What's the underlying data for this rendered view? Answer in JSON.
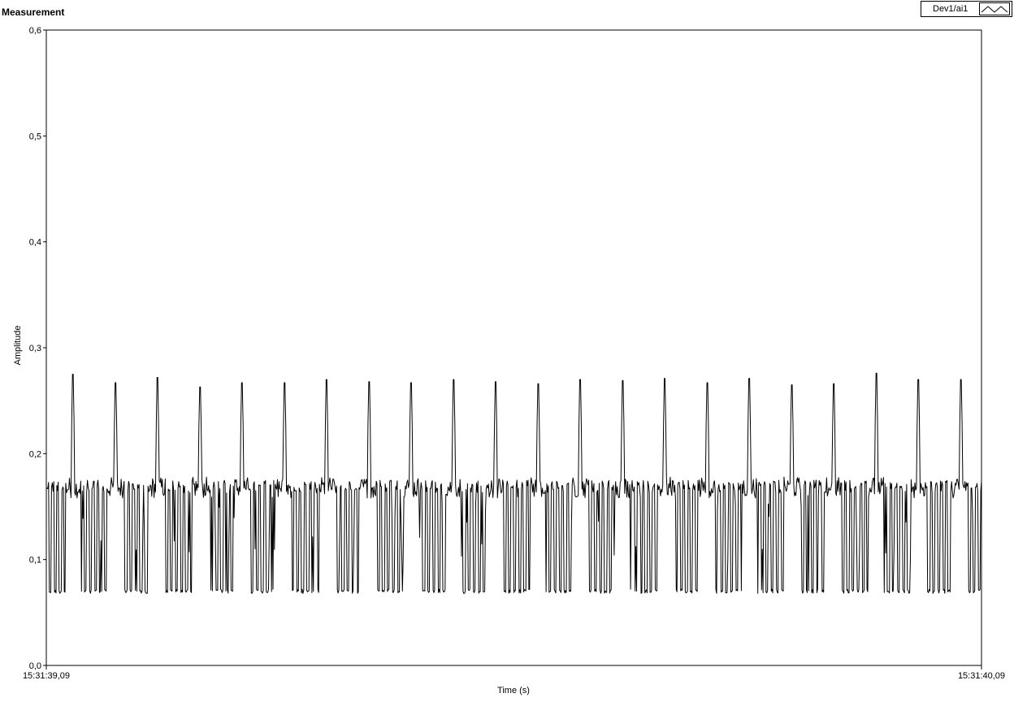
{
  "graph": {
    "title": "Measurement",
    "legend_label": "Dev1/ai1",
    "legend_icon": "waveform-line-icon"
  },
  "colors": {
    "background": "#ffffff",
    "trace": "#000000",
    "axis": "#000000"
  },
  "chart_data": {
    "type": "line",
    "title": "Measurement",
    "xlabel": "Time (s)",
    "ylabel": "Amplitude",
    "ylim": [
      0,
      0.6
    ],
    "yticks": [
      "0,0",
      "0,1",
      "0,2",
      "0,3",
      "0,4",
      "0,5",
      "0,6"
    ],
    "ytick_values": [
      0,
      0.1,
      0.2,
      0.3,
      0.4,
      0.5,
      0.6
    ],
    "xlim": [
      0,
      1
    ],
    "xticks": [
      "15:31:39,09",
      "15:31:40,09"
    ],
    "xtick_values": [
      0,
      1
    ],
    "grid": false,
    "legend_position": "top-right",
    "series": [
      {
        "name": "Dev1/ai1",
        "pulse_count": 22,
        "pulse_period_s": 0.0452,
        "peak_values": [
          0.275,
          0.267,
          0.272,
          0.263,
          0.267,
          0.267,
          0.27,
          0.268,
          0.267,
          0.27,
          0.268,
          0.266,
          0.27,
          0.269,
          0.271,
          0.267,
          0.271,
          0.265,
          0.266,
          0.276,
          0.27,
          0.27
        ],
        "plateau_value": 0.168,
        "oscillation_high": 0.175,
        "oscillation_low": 0.072,
        "min_value": 0.068
      }
    ]
  }
}
